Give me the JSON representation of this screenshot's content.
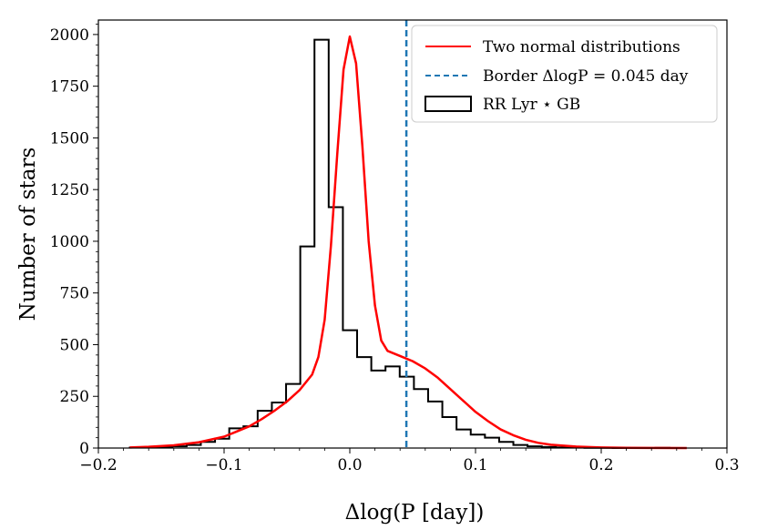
{
  "chart_data": {
    "type": "histogram",
    "xlabel": "Δlog(P [day])",
    "ylabel": "Number of stars",
    "xlim": [
      -0.2,
      0.3
    ],
    "ylim": [
      0,
      2070
    ],
    "x_ticks": [
      -0.2,
      -0.1,
      0.0,
      0.1,
      0.2,
      0.3
    ],
    "x_tick_labels": [
      "−0.2",
      "−0.1",
      "0.0",
      "0.1",
      "0.2",
      "0.3"
    ],
    "y_ticks": [
      0,
      250,
      500,
      750,
      1000,
      1250,
      1500,
      1750,
      2000
    ],
    "y_tick_labels": [
      "0",
      "250",
      "500",
      "750",
      "1000",
      "1250",
      "1500",
      "1750",
      "2000"
    ],
    "histogram": {
      "name": "RR Lyr ⋆ GB",
      "color": "#000000",
      "bin_edges": [
        -0.175,
        -0.1637,
        -0.1524,
        -0.1411,
        -0.1298,
        -0.1185,
        -0.1072,
        -0.0959,
        -0.0846,
        -0.0733,
        -0.062,
        -0.0507,
        -0.0394,
        -0.0281,
        -0.0168,
        -0.0055,
        0.0058,
        0.0171,
        0.0284,
        0.0397,
        0.051,
        0.0623,
        0.0736,
        0.0849,
        0.0962,
        0.1075,
        0.1188,
        0.1301,
        0.1414,
        0.1527,
        0.164,
        0.1753,
        0.1866,
        0.1979,
        0.2092,
        0.2205,
        0.2318,
        0.2431,
        0.2544,
        0.2657
      ],
      "counts": [
        2,
        3,
        5,
        8,
        15,
        30,
        45,
        95,
        105,
        180,
        220,
        310,
        975,
        1975,
        1165,
        570,
        440,
        375,
        395,
        345,
        285,
        225,
        150,
        90,
        65,
        50,
        30,
        15,
        8,
        5,
        3,
        2,
        1,
        1,
        0,
        0,
        0,
        1,
        0
      ]
    },
    "curve": {
      "name": "Two normal distributions",
      "color": "#ff0000",
      "x": [
        -0.175,
        -0.16,
        -0.14,
        -0.12,
        -0.1,
        -0.08,
        -0.07,
        -0.06,
        -0.05,
        -0.04,
        -0.03,
        -0.025,
        -0.02,
        -0.015,
        -0.01,
        -0.005,
        0.0,
        0.005,
        0.01,
        0.015,
        0.02,
        0.025,
        0.03,
        0.04,
        0.05,
        0.06,
        0.07,
        0.08,
        0.09,
        0.1,
        0.11,
        0.12,
        0.13,
        0.14,
        0.15,
        0.16,
        0.18,
        0.2,
        0.22,
        0.24,
        0.268
      ],
      "y": [
        3,
        6,
        13,
        28,
        55,
        105,
        140,
        180,
        225,
        280,
        355,
        440,
        620,
        980,
        1420,
        1830,
        1990,
        1860,
        1460,
        1000,
        690,
        520,
        470,
        445,
        420,
        385,
        340,
        285,
        230,
        175,
        130,
        90,
        62,
        40,
        25,
        16,
        7,
        3,
        1,
        0.5,
        0
      ]
    },
    "border": {
      "name": "Border ΔlogP = 0.045 day",
      "x": 0.045,
      "color": "#1f77b4"
    },
    "legend": {
      "position": "top-right",
      "entries": [
        "Two normal distributions",
        "Border ΔlogP = 0.045 day",
        "RR Lyr ⋆ GB"
      ]
    }
  }
}
